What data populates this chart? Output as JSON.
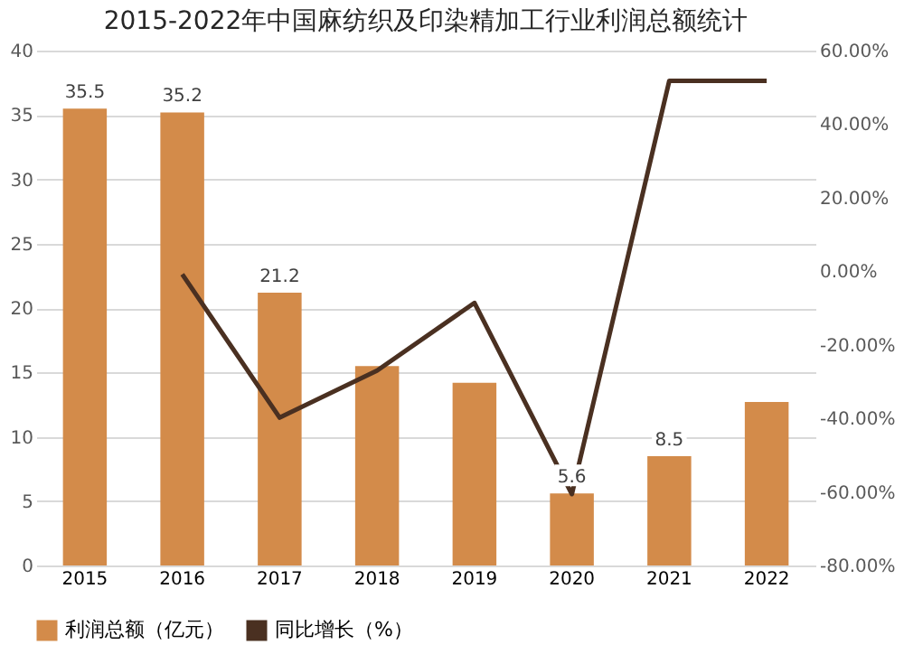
{
  "chart_data": {
    "type": "bar",
    "title": "2015-2022年中国麻纺织及印染精加工行业利润总额统计",
    "categories": [
      "2015",
      "2016",
      "2017",
      "2018",
      "2019",
      "2020",
      "2021",
      "2022"
    ],
    "series": [
      {
        "name": "利润总额（亿元）",
        "color": "#d38b4a",
        "values": [
          35.5,
          35.2,
          21.2,
          15.5,
          14.2,
          5.6,
          8.5,
          12.7
        ],
        "value_labels": [
          "35.5",
          "35.2",
          "21.2",
          null,
          null,
          "5.6",
          "8.5",
          null
        ]
      },
      {
        "name": "同比增长（%）",
        "type": "line",
        "axis": "y2",
        "color": "#4a3021",
        "values": [
          null,
          -0.8,
          -39.8,
          -27,
          -8.6,
          -60.6,
          51.8,
          51.8
        ]
      }
    ],
    "ylim": [
      0,
      40
    ],
    "yticks": [
      0,
      5,
      10,
      15,
      20,
      25,
      30,
      35,
      40
    ],
    "y2lim": [
      -80,
      60
    ],
    "y2ticks": [
      {
        "value": -80,
        "label": "-80.00%"
      },
      {
        "value": -60,
        "label": "-60.00%"
      },
      {
        "value": -40,
        "label": "-40.00%"
      },
      {
        "value": -20,
        "label": "-20.00%"
      },
      {
        "value": 0,
        "label": "0.00%"
      },
      {
        "value": 20,
        "label": "20.00%"
      },
      {
        "value": 40,
        "label": "40.00%"
      },
      {
        "value": 60,
        "label": "60.00%"
      }
    ],
    "grid": "y",
    "legend": "bottom",
    "marker": "none"
  }
}
